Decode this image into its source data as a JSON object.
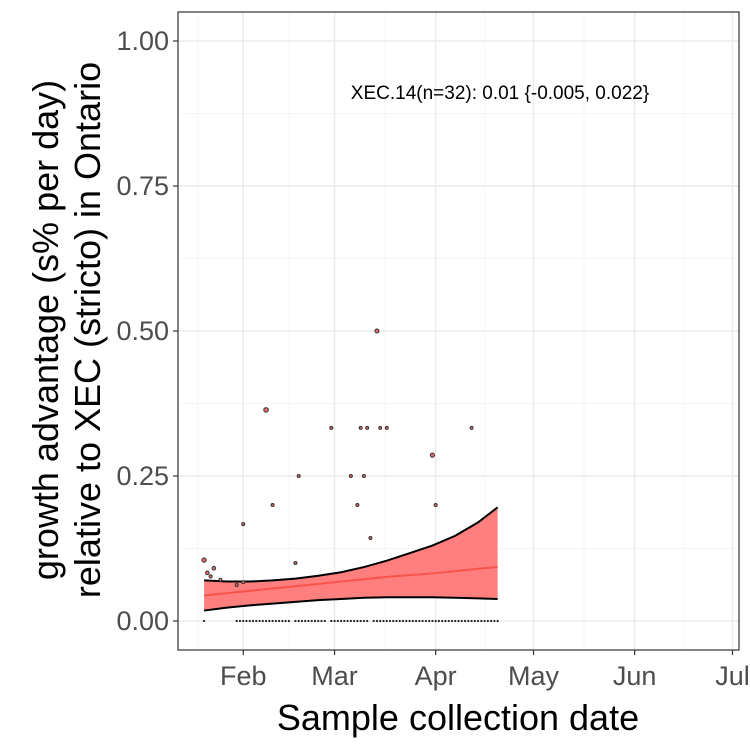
{
  "chart_data": {
    "type": "scatter",
    "xlabel": "Sample collection date",
    "ylabel_lines": [
      "growth advantage (s% per day)",
      "relative to XEC (stricto) in Ontario"
    ],
    "annotation": "XEC.14(n=32): 0.01 {-0.005, 0.022}",
    "xlim": [
      "2025-01-12",
      "2025-07-03"
    ],
    "ylim": [
      -0.05,
      1.05
    ],
    "x_ticks": [
      {
        "date": "2025-02-01",
        "label": "Feb"
      },
      {
        "date": "2025-03-01",
        "label": "Mar"
      },
      {
        "date": "2025-04-01",
        "label": "Apr"
      },
      {
        "date": "2025-05-01",
        "label": "May"
      },
      {
        "date": "2025-06-01",
        "label": "Jun"
      },
      {
        "date": "2025-07-01",
        "label": "Jul"
      }
    ],
    "y_ticks": [
      {
        "value": 0.0,
        "label": "0.00"
      },
      {
        "value": 0.25,
        "label": "0.25"
      },
      {
        "value": 0.5,
        "label": "0.50"
      },
      {
        "value": 0.75,
        "label": "0.75"
      },
      {
        "value": 1.0,
        "label": "1.00"
      }
    ],
    "grid": true,
    "colors": {
      "panel_border": "#333333",
      "grid_major": "#ebebeb",
      "grid_minor": "#f5f5f5",
      "ribbon_fill": "#ff7f7f",
      "fit_line": "#f8544a",
      "ribbon_border": "#000000",
      "point_fill": "#e46a6a",
      "point_stroke": "#333333",
      "zero_point": "#222222"
    },
    "fit": {
      "dates": [
        "2025-01-20",
        "2025-01-27",
        "2025-02-03",
        "2025-02-10",
        "2025-02-17",
        "2025-02-24",
        "2025-03-03",
        "2025-03-10",
        "2025-03-17",
        "2025-03-24",
        "2025-03-31",
        "2025-04-07",
        "2025-04-14",
        "2025-04-20"
      ],
      "estimate": [
        0.044,
        0.048,
        0.052,
        0.056,
        0.06,
        0.064,
        0.068,
        0.072,
        0.076,
        0.079,
        0.082,
        0.086,
        0.09,
        0.093
      ],
      "lower": [
        0.018,
        0.023,
        0.027,
        0.03,
        0.033,
        0.036,
        0.038,
        0.04,
        0.041,
        0.041,
        0.041,
        0.04,
        0.039,
        0.038
      ],
      "upper": [
        0.07,
        0.068,
        0.068,
        0.07,
        0.073,
        0.078,
        0.084,
        0.093,
        0.104,
        0.117,
        0.13,
        0.147,
        0.17,
        0.196
      ]
    },
    "points": [
      {
        "date": "2025-01-20",
        "value": 0.105,
        "size": 2.2
      },
      {
        "date": "2025-01-21",
        "value": 0.083,
        "size": 1.8
      },
      {
        "date": "2025-01-22",
        "value": 0.077,
        "size": 1.6
      },
      {
        "date": "2025-01-23",
        "value": 0.091,
        "size": 1.8
      },
      {
        "date": "2025-01-25",
        "value": 0.071,
        "size": 1.5
      },
      {
        "date": "2025-01-30",
        "value": 0.062,
        "size": 1.5
      },
      {
        "date": "2025-02-01",
        "value": 0.067,
        "size": 1.5
      },
      {
        "date": "2025-02-01",
        "value": 0.167,
        "size": 1.5
      },
      {
        "date": "2025-02-08",
        "value": 0.364,
        "size": 2.3
      },
      {
        "date": "2025-02-10",
        "value": 0.2,
        "size": 1.5
      },
      {
        "date": "2025-02-17",
        "value": 0.1,
        "size": 1.5
      },
      {
        "date": "2025-02-18",
        "value": 0.25,
        "size": 1.5
      },
      {
        "date": "2025-02-28",
        "value": 0.333,
        "size": 1.5
      },
      {
        "date": "2025-03-06",
        "value": 0.25,
        "size": 1.5
      },
      {
        "date": "2025-03-08",
        "value": 0.2,
        "size": 1.5
      },
      {
        "date": "2025-03-09",
        "value": 0.333,
        "size": 1.5
      },
      {
        "date": "2025-03-10",
        "value": 0.25,
        "size": 1.5
      },
      {
        "date": "2025-03-11",
        "value": 0.333,
        "size": 1.5
      },
      {
        "date": "2025-03-12",
        "value": 0.143,
        "size": 1.5
      },
      {
        "date": "2025-03-14",
        "value": 0.5,
        "size": 2.0
      },
      {
        "date": "2025-03-15",
        "value": 0.333,
        "size": 1.5
      },
      {
        "date": "2025-03-17",
        "value": 0.333,
        "size": 1.5
      },
      {
        "date": "2025-03-31",
        "value": 0.286,
        "size": 2.1
      },
      {
        "date": "2025-04-01",
        "value": 0.2,
        "size": 1.5
      },
      {
        "date": "2025-04-12",
        "value": 0.333,
        "size": 1.5
      }
    ],
    "zero_points": {
      "start": "2025-01-20",
      "end": "2025-04-20",
      "skip": [
        "2025-01-21",
        "2025-01-22",
        "2025-01-23",
        "2025-01-24",
        "2025-01-25",
        "2025-01-26",
        "2025-01-27",
        "2025-01-28",
        "2025-01-29",
        "2025-02-16",
        "2025-02-27",
        "2025-03-12"
      ]
    }
  }
}
